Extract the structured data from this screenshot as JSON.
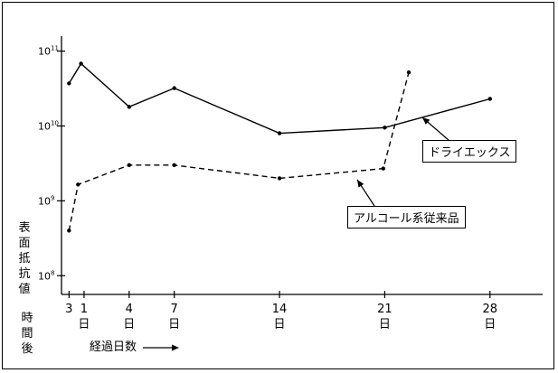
{
  "chart_data": {
    "type": "line",
    "title": "",
    "ylabel": "表面抵抗値",
    "xlabel": "経過日数",
    "y_scale": "log",
    "ylim_exp": [
      7.75,
      11.2
    ],
    "xlim": [
      -0.5,
      31.5
    ],
    "y_ticks": [
      {
        "exp": 8,
        "base": "10",
        "sup": "8"
      },
      {
        "exp": 9,
        "base": "10",
        "sup": "9"
      },
      {
        "exp": 10,
        "base": "10",
        "sup": "10"
      },
      {
        "exp": 11,
        "base": "10",
        "sup": "11"
      }
    ],
    "x_ticks": [
      {
        "x": 0,
        "label": "3"
      },
      {
        "x": 1,
        "label": "1"
      },
      {
        "x": 4,
        "label": "4"
      },
      {
        "x": 7,
        "label": "7"
      },
      {
        "x": 14,
        "label": "14"
      },
      {
        "x": 21,
        "label": "21"
      },
      {
        "x": 28,
        "label": "28"
      }
    ],
    "x_tick_day_label": "日",
    "x_first_tick_stack": [
      "時",
      "間",
      "後"
    ],
    "series": [
      {
        "name": "ドライエックス",
        "style": "solid",
        "x": [
          0,
          0.8,
          4,
          7,
          14,
          21,
          28
        ],
        "y": [
          37000000000.0,
          68000000000.0,
          18000000000.0,
          32000000000.0,
          8000000000.0,
          9500000000.0,
          23000000000.0
        ]
      },
      {
        "name": "アルコール系従来品",
        "style": "dashed",
        "x": [
          0,
          0.6,
          4,
          7,
          14,
          20.9,
          22.6
        ],
        "y": [
          400000000.0,
          1650000000.0,
          3000000000.0,
          3000000000.0,
          2000000000.0,
          2700000000.0,
          52000000000.0
        ]
      }
    ],
    "grid": false,
    "legend": "annotations"
  },
  "annotations": {
    "dry_label": "ドライエックス",
    "alc_label": "アルコール系従来品"
  },
  "labels": {
    "ylabel_chars": [
      "表",
      "面",
      "抵",
      "抗",
      "値"
    ],
    "xlabel": "経過日数"
  }
}
